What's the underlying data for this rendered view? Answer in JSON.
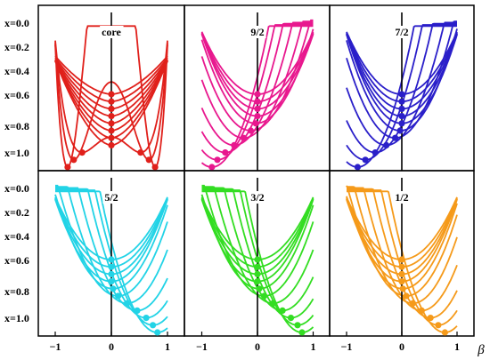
{
  "figure": {
    "x_axis_symbol": "β",
    "x_tick_labels": [
      "−1",
      "0",
      "1"
    ],
    "row_labels": [
      "x=0.0",
      "x=0.2",
      "x=0.4",
      "x=0.6",
      "x=0.8",
      "x=1.0"
    ],
    "curve_x_values": [
      0.0,
      0.1,
      0.2,
      0.3,
      0.4,
      0.5,
      0.6,
      0.7,
      0.8,
      0.9,
      1.0
    ]
  },
  "chart_data": [
    {
      "type": "line",
      "title": "core",
      "color": "#e0201b",
      "x_axis": "beta",
      "xlim": [
        -1,
        1
      ],
      "y_variable": "x",
      "y_range": [
        0.0,
        1.0
      ],
      "y_direction": "increasing downward",
      "vertical_line_at": 0,
      "markers": "minima of each curve",
      "minimum_positions": [
        0,
        0,
        0,
        0,
        0,
        0,
        0,
        0,
        0.52,
        0.67,
        0.78
      ],
      "symmetric": true
    },
    {
      "type": "line",
      "title": "9/2",
      "color": "#e8188e",
      "x_axis": "beta",
      "xlim": [
        -1,
        1
      ],
      "y_variable": "x",
      "y_range": [
        0.0,
        1.0
      ],
      "vertical_line_at": 0,
      "markers": "minima of each curve",
      "minimum_positions": [
        0,
        0,
        0,
        0,
        -0.03,
        -0.12,
        -0.25,
        -0.42,
        -0.58,
        -0.72,
        -0.82
      ],
      "symmetric": false
    },
    {
      "type": "line",
      "title": "7/2",
      "color": "#2a1fc9",
      "x_axis": "beta",
      "xlim": [
        -1,
        1
      ],
      "y_variable": "x",
      "y_range": [
        0.0,
        1.0
      ],
      "vertical_line_at": 0,
      "markers": "minima of each curve",
      "minimum_positions": [
        0,
        0,
        0,
        0,
        0,
        -0.03,
        -0.12,
        -0.28,
        -0.48,
        -0.66,
        -0.8
      ],
      "symmetric": false
    },
    {
      "type": "line",
      "title": "5/2",
      "color": "#22d3e6",
      "x_axis": "beta",
      "xlim": [
        -1,
        1
      ],
      "y_variable": "x",
      "y_range": [
        0.0,
        1.0
      ],
      "vertical_line_at": 0,
      "markers": "minima of each curve",
      "minimum_positions": [
        0,
        0,
        0,
        0,
        0.03,
        0.12,
        0.28,
        0.46,
        0.62,
        0.74,
        0.82
      ],
      "symmetric": false
    },
    {
      "type": "line",
      "title": "3/2",
      "color": "#33dd22",
      "x_axis": "beta",
      "xlim": [
        -1,
        1
      ],
      "y_variable": "x",
      "y_range": [
        0.0,
        1.0
      ],
      "vertical_line_at": 0,
      "markers": "minima of each curve",
      "minimum_positions": [
        0,
        0,
        0,
        0,
        0.03,
        0.12,
        0.28,
        0.45,
        0.6,
        0.72,
        0.8
      ],
      "symmetric": false
    },
    {
      "type": "line",
      "title": "1/2",
      "color": "#f59a1a",
      "x_axis": "beta",
      "xlim": [
        -1,
        1
      ],
      "y_variable": "x",
      "y_range": [
        0.0,
        1.0
      ],
      "vertical_line_at": 0,
      "markers": "minima of each curve",
      "minimum_positions": [
        0,
        0,
        0,
        0,
        0.02,
        0.08,
        0.2,
        0.36,
        0.52,
        0.66,
        0.78
      ],
      "symmetric": false
    }
  ]
}
